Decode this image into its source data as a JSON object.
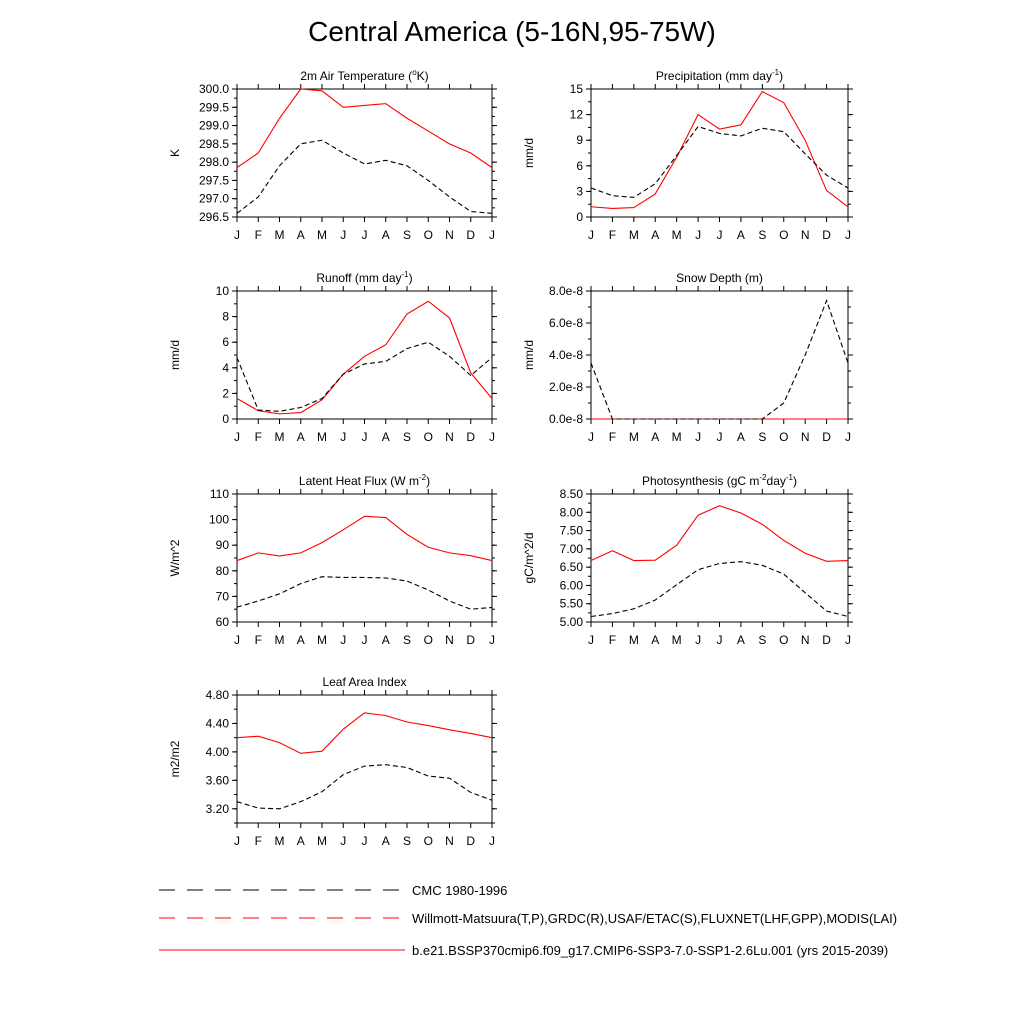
{
  "page_title": "Central America (5-16N,95-75W)",
  "colors": {
    "model": "#ff0000",
    "obs_black": "#000000",
    "obs_alt": "#2a2aa0"
  },
  "legend": {
    "items": [
      {
        "label": "CMC 1980-1996",
        "style": "dashed",
        "color": "#000000"
      },
      {
        "label": "Willmott-Matsuura(T,P),GRDC(R),USAF/ETAC(S),FLUXNET(LHF,GPP),MODIS(LAI)",
        "style": "dashed",
        "color": "#ff0000"
      },
      {
        "label": "b.e21.BSSP370cmip6.f09_g17.CMIP6-SSP3-7.0-SSP1-2.6Lu.001 (yrs 2015-2039)",
        "style": "solid",
        "color": "#ff0000"
      }
    ]
  },
  "chart_data": [
    {
      "type": "line",
      "title": "2m Air Temperature (",
      "title_sup": "o",
      "title_rest": "K)",
      "ylabel": "K",
      "x": [
        "J",
        "F",
        "M",
        "A",
        "M",
        "J",
        "J",
        "A",
        "S",
        "O",
        "N",
        "D",
        "J"
      ],
      "ylim": [
        296.5,
        300.0
      ],
      "yticks": [
        296.5,
        297.0,
        297.5,
        298.0,
        298.5,
        299.0,
        299.5,
        300.0
      ],
      "ytick_labels": [
        "296.5",
        "297.0",
        "297.5",
        "298.0",
        "298.5",
        "299.0",
        "299.5",
        "300.0"
      ],
      "series": [
        {
          "style": "solid",
          "values": [
            297.85,
            298.25,
            299.2,
            300.0,
            299.95,
            299.5,
            299.55,
            299.6,
            299.2,
            298.85,
            298.5,
            298.25,
            297.85
          ]
        },
        {
          "style": "dashed",
          "values": [
            296.6,
            297.05,
            297.9,
            298.5,
            298.6,
            298.25,
            297.95,
            298.05,
            297.9,
            297.5,
            297.05,
            296.65,
            296.6
          ]
        }
      ]
    },
    {
      "type": "line",
      "title": "Precipitation (mm day",
      "title_sup": "-1",
      "title_rest": ")",
      "ylabel": "mm/d",
      "x": [
        "J",
        "F",
        "M",
        "A",
        "M",
        "J",
        "J",
        "A",
        "S",
        "O",
        "N",
        "D",
        "J"
      ],
      "ylim": [
        0,
        15
      ],
      "yticks": [
        0,
        3,
        6,
        9,
        12,
        15
      ],
      "ytick_labels": [
        "0",
        "3",
        "6",
        "9",
        "12",
        "15"
      ],
      "series": [
        {
          "style": "solid",
          "values": [
            1.2,
            1.0,
            1.1,
            2.7,
            7.0,
            12.0,
            10.3,
            10.8,
            14.7,
            13.4,
            9.0,
            3.1,
            1.2
          ]
        },
        {
          "style": "dashed",
          "values": [
            3.4,
            2.5,
            2.3,
            3.9,
            7.2,
            10.6,
            9.8,
            9.5,
            10.4,
            10.0,
            7.4,
            4.9,
            3.4
          ]
        }
      ]
    },
    {
      "type": "line",
      "title": "Runoff (mm day",
      "title_sup": "-1",
      "title_rest": ")",
      "ylabel": "mm/d",
      "x": [
        "J",
        "F",
        "M",
        "A",
        "M",
        "J",
        "J",
        "A",
        "S",
        "O",
        "N",
        "D",
        "J"
      ],
      "ylim": [
        0,
        10
      ],
      "yticks": [
        0,
        2,
        4,
        6,
        8,
        10
      ],
      "ytick_labels": [
        "0",
        "2",
        "4",
        "6",
        "8",
        "10"
      ],
      "series": [
        {
          "style": "solid",
          "values": [
            1.6,
            0.65,
            0.4,
            0.5,
            1.5,
            3.5,
            4.9,
            5.8,
            8.2,
            9.2,
            7.9,
            3.6,
            1.6
          ]
        },
        {
          "style": "dashed",
          "values": [
            4.8,
            0.7,
            0.6,
            0.9,
            1.6,
            3.5,
            4.3,
            4.5,
            5.5,
            6.0,
            4.9,
            3.4,
            4.8
          ]
        }
      ]
    },
    {
      "type": "line",
      "title": "Snow Depth (m)",
      "title_sup": "",
      "title_rest": "",
      "ylabel": "mm/d",
      "x": [
        "J",
        "F",
        "M",
        "A",
        "M",
        "J",
        "J",
        "A",
        "S",
        "O",
        "N",
        "D",
        "J"
      ],
      "ylim": [
        0,
        8e-08
      ],
      "yticks": [
        0,
        2e-08,
        4e-08,
        6e-08,
        8e-08
      ],
      "ytick_labels": [
        "0.0e-8",
        "2.0e-8",
        "4.0e-8",
        "6.0e-8",
        "8.0e-8"
      ],
      "series": [
        {
          "style": "solid",
          "values": [
            0,
            0,
            0,
            0,
            0,
            0,
            0,
            0,
            0,
            0,
            0,
            0,
            0
          ]
        },
        {
          "style": "dashed",
          "values": [
            3.5e-08,
            0,
            0,
            0,
            0,
            0,
            0,
            0,
            0,
            1e-08,
            4e-08,
            7.4e-08,
            3.5e-08
          ]
        }
      ]
    },
    {
      "type": "line",
      "title": "Latent Heat Flux (W m",
      "title_sup": "-2",
      "title_rest": ")",
      "ylabel": "W/m^2",
      "x": [
        "J",
        "F",
        "M",
        "A",
        "M",
        "J",
        "J",
        "A",
        "S",
        "O",
        "N",
        "D",
        "J"
      ],
      "ylim": [
        60,
        110
      ],
      "yticks": [
        60,
        70,
        80,
        90,
        100,
        110
      ],
      "ytick_labels": [
        "60",
        "70",
        "80",
        "90",
        "100",
        "110"
      ],
      "series": [
        {
          "style": "solid",
          "values": [
            84,
            87,
            85.8,
            87,
            91,
            96,
            101.3,
            100.8,
            94.2,
            89.2,
            87,
            85.9,
            84
          ]
        },
        {
          "style": "dashed",
          "values": [
            65.8,
            68.2,
            71,
            75,
            77.7,
            77.4,
            77.4,
            77.2,
            76,
            72.5,
            68.2,
            65,
            65.7
          ]
        }
      ]
    },
    {
      "type": "line",
      "title": "Photosynthesis (gC m",
      "title_sup": "-2",
      "title_rest": "day",
      "title_sup2": "-1",
      "title_end": ")",
      "ylabel": "gC/m^2/d",
      "x": [
        "J",
        "F",
        "M",
        "A",
        "M",
        "J",
        "J",
        "A",
        "S",
        "O",
        "N",
        "D",
        "J"
      ],
      "ylim": [
        5.0,
        8.5
      ],
      "yticks": [
        5.0,
        5.5,
        6.0,
        6.5,
        7.0,
        7.5,
        8.0,
        8.5
      ],
      "ytick_labels": [
        "5.00",
        "5.50",
        "6.00",
        "6.50",
        "7.00",
        "7.50",
        "8.00",
        "8.50"
      ],
      "series": [
        {
          "style": "solid",
          "values": [
            6.68,
            6.95,
            6.68,
            6.69,
            7.1,
            7.92,
            8.18,
            7.98,
            7.67,
            7.23,
            6.88,
            6.66,
            6.68
          ]
        },
        {
          "style": "dashed",
          "values": [
            5.15,
            5.23,
            5.36,
            5.6,
            6.02,
            6.43,
            6.6,
            6.65,
            6.55,
            6.31,
            5.8,
            5.3,
            5.15
          ]
        }
      ]
    },
    {
      "type": "line",
      "title": "Leaf Area Index",
      "title_sup": "",
      "title_rest": "",
      "ylabel": "m2/m2",
      "x": [
        "J",
        "F",
        "M",
        "A",
        "M",
        "J",
        "J",
        "A",
        "S",
        "O",
        "N",
        "D",
        "J"
      ],
      "ylim": [
        3.0,
        4.8
      ],
      "yticks": [
        3.2,
        3.6,
        4.0,
        4.4,
        4.8
      ],
      "ytick_labels": [
        "3.20",
        "3.60",
        "4.00",
        "4.40",
        "4.80"
      ],
      "series": [
        {
          "style": "solid",
          "values": [
            4.2,
            4.22,
            4.13,
            3.98,
            4.01,
            4.32,
            4.55,
            4.51,
            4.42,
            4.37,
            4.31,
            4.26,
            4.2
          ]
        },
        {
          "style": "dashed",
          "values": [
            3.3,
            3.21,
            3.2,
            3.3,
            3.44,
            3.68,
            3.8,
            3.82,
            3.78,
            3.66,
            3.63,
            3.43,
            3.32
          ]
        }
      ]
    }
  ]
}
